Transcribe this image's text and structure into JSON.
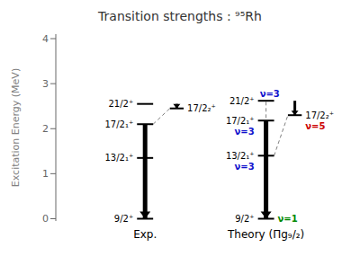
{
  "chart_data": {
    "type": "level_scheme",
    "title": "Transition strengths : ⁹⁵Rh",
    "ylabel": "Excitation Energy (MeV)",
    "ylim": [
      -0.05,
      4.1
    ],
    "yticks": [
      0,
      1,
      2,
      3,
      4
    ],
    "color": "#000000",
    "columns": [
      {
        "name": "Exp.",
        "levels": [
          {
            "label": "9/2⁺",
            "energy": 0.0
          },
          {
            "label": "13/2₁⁺",
            "energy": 1.35
          },
          {
            "label": "17/2₁⁺",
            "energy": 2.1
          },
          {
            "label": "21/2⁺",
            "energy": 2.55
          },
          {
            "label": "17/2₂⁺",
            "energy": 2.45
          }
        ],
        "transitions": [
          {
            "from": "17/2₁⁺",
            "to": "9/2⁺"
          },
          {
            "from": "21/2⁺",
            "to": "17/2₂⁺"
          }
        ],
        "links": [
          {
            "from": "17/2₁⁺",
            "to": "17/2₂⁺"
          }
        ],
        "nu": []
      },
      {
        "name": "Theory (Πg₉/₂)",
        "levels": [
          {
            "label": "9/2⁺",
            "energy": 0.0
          },
          {
            "label": "13/2₁⁺",
            "energy": 1.4
          },
          {
            "label": "17/2₁⁺",
            "energy": 2.18
          },
          {
            "label": "21/2⁺",
            "energy": 2.62
          },
          {
            "label": "17/2₂⁺",
            "energy": 2.3
          }
        ],
        "transitions": [
          {
            "from": "17/2₁⁺",
            "to": "9/2⁺"
          },
          {
            "from": "21/2⁺",
            "to": "17/2₂⁺"
          }
        ],
        "links": [
          {
            "from": "13/2₁⁺",
            "to": "21/2⁺"
          },
          {
            "from": "13/2₁⁺",
            "to": "17/2₂⁺"
          }
        ],
        "nu": [
          {
            "level": "9/2⁺",
            "text": "ν=1",
            "color": "#008800"
          },
          {
            "level": "13/2₁⁺",
            "text": "ν=3",
            "color": "#1111cc"
          },
          {
            "level": "17/2₁⁺",
            "text": "ν=3",
            "color": "#1111cc"
          },
          {
            "level": "21/2⁺",
            "text": "ν=3",
            "color": "#1111cc"
          },
          {
            "level": "17/2₂⁺",
            "text": "ν=5",
            "color": "#cc0000"
          }
        ]
      }
    ]
  }
}
